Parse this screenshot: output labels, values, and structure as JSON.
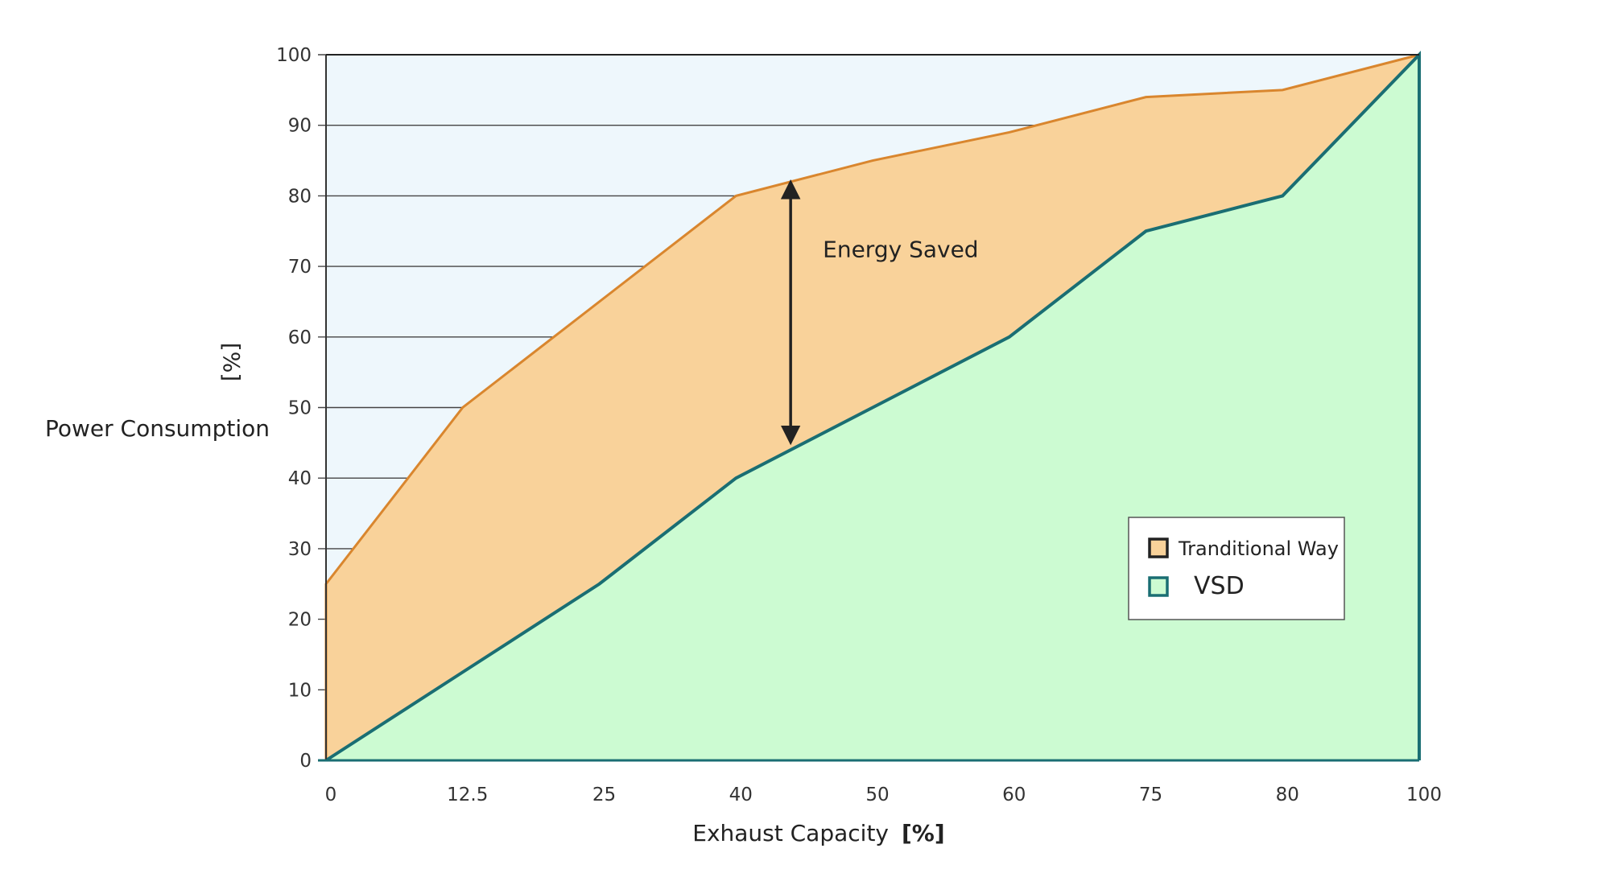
{
  "chart_data": {
    "type": "area",
    "x": [
      0,
      12.5,
      25,
      40,
      50,
      60,
      75,
      80,
      100
    ],
    "xtick_labels": [
      "0",
      "12.5",
      "25",
      "40",
      "50",
      "60",
      "75",
      "80",
      "100"
    ],
    "yticks": [
      0,
      10,
      20,
      30,
      40,
      50,
      60,
      70,
      80,
      90,
      100
    ],
    "ylim": [
      0,
      100
    ],
    "xlabel": "Exhaust Capacity",
    "xlabel_unit": "[%]",
    "ylabel": "Power Consumption",
    "ylabel_unit": "[%]",
    "grid": "horizontal",
    "legend_position": "lower-right",
    "series": [
      {
        "name": "Tranditional Way",
        "values": [
          25,
          50,
          65,
          80,
          85,
          89,
          94,
          95,
          100
        ],
        "color": "#d9862e",
        "fill": "#f9d29a"
      },
      {
        "name": "VSD",
        "values": [
          0,
          12.5,
          25,
          40,
          50,
          60,
          75,
          80,
          100
        ],
        "color": "#1a6e73",
        "fill": "#ccfbd2"
      }
    ],
    "annotation": {
      "text": "Energy Saved",
      "x": 44,
      "y_top": 82,
      "y_bottom": 45
    },
    "background": "#eef7fc"
  }
}
